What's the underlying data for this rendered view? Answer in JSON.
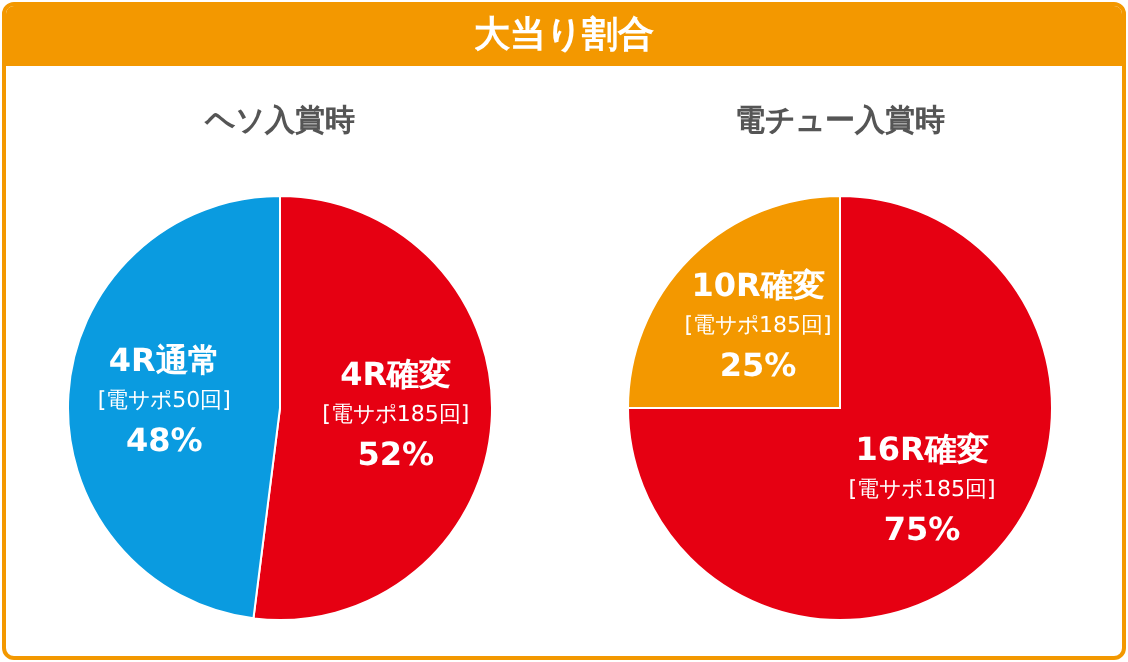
{
  "chart_data": [
    {
      "type": "pie",
      "title": "大当り割合",
      "subtitle": "ヘソ入賞時",
      "categories": [
        "4R確変\n[電サポ185回]",
        "4R通常\n[電サポ50回]"
      ],
      "values": [
        52,
        48
      ],
      "colors": [
        "#e60012",
        "#0a9be0"
      ],
      "value_labels": [
        "52%",
        "48%"
      ],
      "legend": false
    },
    {
      "type": "pie",
      "subtitle": "電チュー入賞時",
      "categories": [
        "16R確変\n[電サポ185回]",
        "10R確変\n[電サポ185回]"
      ],
      "values": [
        75,
        25
      ],
      "colors": [
        "#e60012",
        "#f39800"
      ],
      "value_labels": [
        "75%",
        "25%"
      ],
      "legend": false
    }
  ]
}
